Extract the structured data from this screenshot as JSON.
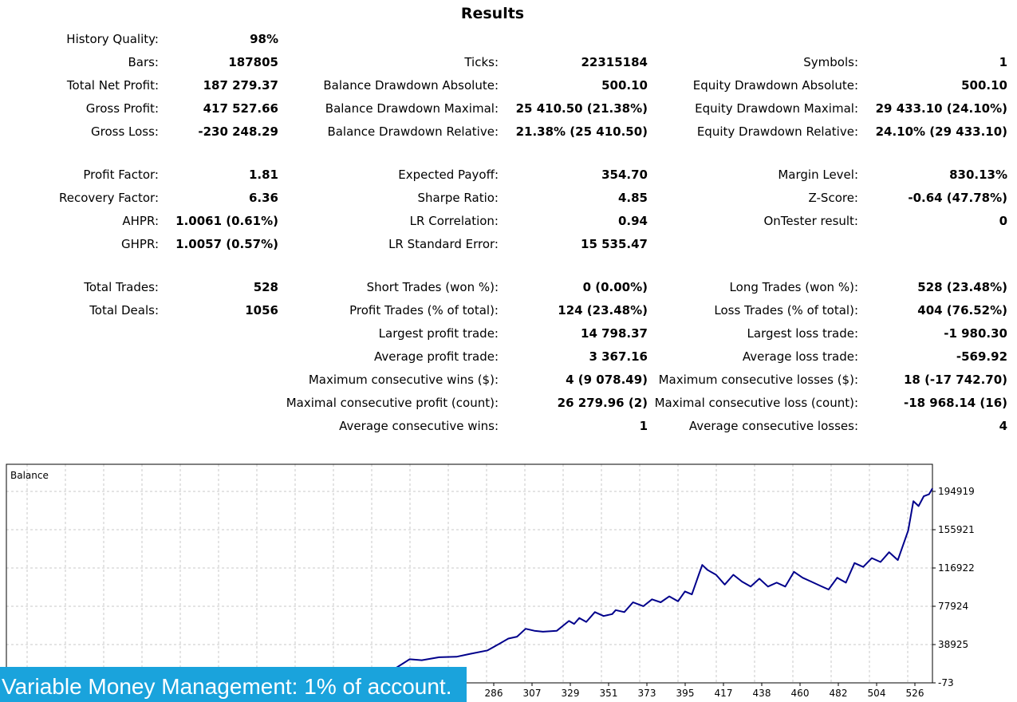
{
  "title": "Results",
  "stats": {
    "history_quality": {
      "label": "History Quality:",
      "value": "98%"
    },
    "bars": {
      "label": "Bars:",
      "value": "187805"
    },
    "ticks": {
      "label": "Ticks:",
      "value": "22315184"
    },
    "symbols": {
      "label": "Symbols:",
      "value": "1"
    },
    "total_net_profit": {
      "label": "Total Net Profit:",
      "value": "187 279.37"
    },
    "balance_dd_abs": {
      "label": "Balance Drawdown Absolute:",
      "value": "500.10"
    },
    "equity_dd_abs": {
      "label": "Equity Drawdown Absolute:",
      "value": "500.10"
    },
    "gross_profit": {
      "label": "Gross Profit:",
      "value": "417 527.66"
    },
    "balance_dd_max": {
      "label": "Balance Drawdown Maximal:",
      "value": "25 410.50 (21.38%)"
    },
    "equity_dd_max": {
      "label": "Equity Drawdown Maximal:",
      "value": "29 433.10 (24.10%)"
    },
    "gross_loss": {
      "label": "Gross Loss:",
      "value": "-230 248.29"
    },
    "balance_dd_rel": {
      "label": "Balance Drawdown Relative:",
      "value": "21.38% (25 410.50)"
    },
    "equity_dd_rel": {
      "label": "Equity Drawdown Relative:",
      "value": "24.10% (29 433.10)"
    },
    "profit_factor": {
      "label": "Profit Factor:",
      "value": "1.81"
    },
    "expected_payoff": {
      "label": "Expected Payoff:",
      "value": "354.70"
    },
    "margin_level": {
      "label": "Margin Level:",
      "value": "830.13%"
    },
    "recovery_factor": {
      "label": "Recovery Factor:",
      "value": "6.36"
    },
    "sharpe_ratio": {
      "label": "Sharpe Ratio:",
      "value": "4.85"
    },
    "z_score": {
      "label": "Z-Score:",
      "value": "-0.64 (47.78%)"
    },
    "ahpr": {
      "label": "AHPR:",
      "value": "1.0061 (0.61%)"
    },
    "lr_correlation": {
      "label": "LR Correlation:",
      "value": "0.94"
    },
    "ontester_result": {
      "label": "OnTester result:",
      "value": "0"
    },
    "ghpr": {
      "label": "GHPR:",
      "value": "1.0057 (0.57%)"
    },
    "lr_std_error": {
      "label": "LR Standard Error:",
      "value": "15 535.47"
    },
    "total_trades": {
      "label": "Total Trades:",
      "value": "528"
    },
    "short_trades": {
      "label": "Short Trades (won %):",
      "value": "0 (0.00%)"
    },
    "long_trades": {
      "label": "Long Trades (won %):",
      "value": "528 (23.48%)"
    },
    "total_deals": {
      "label": "Total Deals:",
      "value": "1056"
    },
    "profit_trades": {
      "label": "Profit Trades (% of total):",
      "value": "124 (23.48%)"
    },
    "loss_trades": {
      "label": "Loss Trades (% of total):",
      "value": "404 (76.52%)"
    },
    "largest_profit_trade": {
      "label": "Largest profit trade:",
      "value": "14 798.37"
    },
    "largest_loss_trade": {
      "label": "Largest loss trade:",
      "value": "-1 980.30"
    },
    "average_profit_trade": {
      "label": "Average profit trade:",
      "value": "3 367.16"
    },
    "average_loss_trade": {
      "label": "Average loss trade:",
      "value": "-569.92"
    },
    "max_consec_wins": {
      "label": "Maximum consecutive wins ($):",
      "value": "4 (9 078.49)"
    },
    "max_consec_losses": {
      "label": "Maximum consecutive losses ($):",
      "value": "18 (-17 742.70)"
    },
    "maximal_consec_profit": {
      "label": "Maximal consecutive profit (count):",
      "value": "26 279.96 (2)"
    },
    "maximal_consec_loss": {
      "label": "Maximal consecutive loss (count):",
      "value": "-18 968.14 (16)"
    },
    "avg_consec_wins": {
      "label": "Average consecutive wins:",
      "value": "1"
    },
    "avg_consec_losses": {
      "label": "Average consecutive losses:",
      "value": "4"
    }
  },
  "banner": "Variable Money Management: 1% of account.",
  "chart_data": {
    "type": "line",
    "title": "Balance",
    "xlabel": "",
    "ylabel": "",
    "x_ticks": [
      "286",
      "307",
      "329",
      "351",
      "373",
      "395",
      "417",
      "438",
      "460",
      "482",
      "504",
      "526"
    ],
    "y_ticks": [
      "-73",
      "38925",
      "77924",
      "116922",
      "155921",
      "194919"
    ],
    "xlim": [
      0,
      535
    ],
    "ylim": [
      -73,
      194919
    ],
    "grid": true,
    "line_color": "#00008b",
    "series": [
      {
        "x": [
          0,
          50,
          95,
          120,
          140,
          155,
          175,
          195,
          210,
          225,
          233,
          240,
          250,
          260,
          268,
          278,
          285,
          290,
          295,
          300,
          305,
          310,
          318,
          325,
          328,
          331,
          335,
          340,
          345,
          350,
          352,
          357,
          362,
          368,
          373,
          378,
          383,
          388,
          392,
          396,
          398,
          400,
          402,
          405,
          410,
          415,
          420,
          425,
          430,
          435,
          440,
          445,
          450,
          455,
          460,
          465,
          470,
          475,
          480,
          485,
          490,
          495,
          500,
          505,
          510,
          515,
          518,
          521,
          524,
          527,
          530,
          533,
          535
        ],
        "y": [
          -73,
          2000,
          5000,
          6500,
          8000,
          9000,
          10500,
          12000,
          14000,
          15000,
          24000,
          23000,
          26000,
          26500,
          29500,
          33000,
          40000,
          45000,
          47000,
          55000,
          53000,
          52000,
          53000,
          63000,
          60000,
          66000,
          62000,
          72000,
          68000,
          70000,
          74000,
          72000,
          82000,
          78000,
          85000,
          82000,
          88000,
          83000,
          93000,
          90000,
          100000,
          110000,
          120000,
          115000,
          110000,
          100000,
          110000,
          103000,
          98000,
          106000,
          98000,
          102000,
          98000,
          113000,
          107000,
          103000,
          99000,
          95000,
          107000,
          102000,
          122000,
          118000,
          127000,
          123000,
          133000,
          125000,
          140000,
          155000,
          185000,
          180000,
          190000,
          192000,
          198000
        ]
      }
    ]
  }
}
